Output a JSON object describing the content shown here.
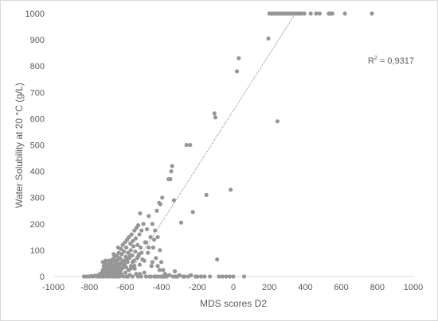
{
  "chart_data": {
    "type": "scatter",
    "title": "",
    "xlabel": "MDS scores D2",
    "ylabel": "Water Solubility at 20 °C (g/L)",
    "xlim": [
      -1000,
      1000
    ],
    "ylim": [
      0,
      1000
    ],
    "x_ticks": [
      "-1000",
      "-800",
      "-600",
      "-400",
      "-200",
      "0",
      "200",
      "400",
      "600",
      "800",
      "1000"
    ],
    "y_ticks": [
      "0",
      "100",
      "200",
      "300",
      "400",
      "500",
      "600",
      "700",
      "800",
      "900",
      "1000"
    ],
    "grid": false,
    "legend": "none",
    "marker_color": "#969696",
    "trendline": {
      "style": "dotted",
      "color": "#8c8c8c",
      "from": [
        -590,
        0
      ],
      "to": [
        345,
        1000
      ],
      "r2_label_prefix": "R",
      "r2_label_sup": "2",
      "r2_label_value": " = 0,9317"
    },
    "points": [
      [
        -830,
        0
      ],
      [
        -815,
        0
      ],
      [
        -800,
        0
      ],
      [
        -790,
        2
      ],
      [
        -780,
        0
      ],
      [
        -770,
        3
      ],
      [
        -760,
        0
      ],
      [
        -750,
        5
      ],
      [
        -745,
        0
      ],
      [
        -740,
        10
      ],
      [
        -735,
        2
      ],
      [
        -730,
        15
      ],
      [
        -728,
        0
      ],
      [
        -725,
        25
      ],
      [
        -722,
        5
      ],
      [
        -720,
        40
      ],
      [
        -718,
        0
      ],
      [
        -715,
        20
      ],
      [
        -712,
        8
      ],
      [
        -710,
        60
      ],
      [
        -708,
        3
      ],
      [
        -705,
        30
      ],
      [
        -702,
        12
      ],
      [
        -700,
        0
      ],
      [
        -698,
        45
      ],
      [
        -695,
        18
      ],
      [
        -692,
        5
      ],
      [
        -690,
        60
      ],
      [
        -688,
        25
      ],
      [
        -686,
        0
      ],
      [
        -684,
        35
      ],
      [
        -682,
        10
      ],
      [
        -680,
        50
      ],
      [
        -678,
        2
      ],
      [
        -676,
        28
      ],
      [
        -674,
        15
      ],
      [
        -672,
        65
      ],
      [
        -670,
        0
      ],
      [
        -668,
        40
      ],
      [
        -666,
        8
      ],
      [
        -664,
        30
      ],
      [
        -662,
        20
      ],
      [
        -660,
        75
      ],
      [
        -658,
        0
      ],
      [
        -656,
        45
      ],
      [
        -654,
        12
      ],
      [
        -652,
        55
      ],
      [
        -650,
        5
      ],
      [
        -648,
        35
      ],
      [
        -646,
        80
      ],
      [
        -644,
        0
      ],
      [
        -642,
        25
      ],
      [
        -640,
        65
      ],
      [
        -638,
        10
      ],
      [
        -636,
        90
      ],
      [
        -634,
        40
      ],
      [
        -632,
        0
      ],
      [
        -630,
        70
      ],
      [
        -628,
        20
      ],
      [
        -626,
        50
      ],
      [
        -624,
        105
      ],
      [
        -622,
        8
      ],
      [
        -620,
        85
      ],
      [
        -618,
        30
      ],
      [
        -615,
        120
      ],
      [
        -612,
        60
      ],
      [
        -610,
        0
      ],
      [
        -608,
        95
      ],
      [
        -605,
        45
      ],
      [
        -602,
        130
      ],
      [
        -600,
        15
      ],
      [
        -598,
        75
      ],
      [
        -595,
        110
      ],
      [
        -592,
        0
      ],
      [
        -590,
        140
      ],
      [
        -588,
        55
      ],
      [
        -585,
        90
      ],
      [
        -582,
        25
      ],
      [
        -580,
        150
      ],
      [
        -578,
        70
      ],
      [
        -575,
        5
      ],
      [
        -572,
        125
      ],
      [
        -570,
        100
      ],
      [
        -568,
        40
      ],
      [
        -565,
        160
      ],
      [
        -562,
        80
      ],
      [
        -560,
        0
      ],
      [
        -558,
        135
      ],
      [
        -555,
        115
      ],
      [
        -552,
        60
      ],
      [
        -550,
        175
      ],
      [
        -548,
        30
      ],
      [
        -545,
        95
      ],
      [
        -542,
        145
      ],
      [
        -540,
        10
      ],
      [
        -538,
        185
      ],
      [
        -535,
        70
      ],
      [
        -532,
        120
      ],
      [
        -530,
        0
      ],
      [
        -528,
        195
      ],
      [
        -525,
        85
      ],
      [
        -522,
        160
      ],
      [
        -520,
        45
      ],
      [
        -518,
        240
      ],
      [
        -515,
        110
      ],
      [
        -512,
        0
      ],
      [
        -510,
        175
      ],
      [
        -505,
        65
      ],
      [
        -500,
        200
      ],
      [
        -495,
        15
      ],
      [
        -490,
        130
      ],
      [
        -485,
        0
      ],
      [
        -480,
        180
      ],
      [
        -475,
        90
      ],
      [
        -470,
        230
      ],
      [
        -465,
        0
      ],
      [
        -460,
        150
      ],
      [
        -455,
        40
      ],
      [
        -450,
        200
      ],
      [
        -445,
        110
      ],
      [
        -440,
        0
      ],
      [
        -435,
        175
      ],
      [
        -430,
        70
      ],
      [
        -425,
        250
      ],
      [
        -420,
        150
      ],
      [
        -415,
        0
      ],
      [
        -412,
        280
      ],
      [
        -408,
        100
      ],
      [
        -405,
        275
      ],
      [
        -400,
        55
      ],
      [
        -398,
        0
      ],
      [
        -395,
        300
      ],
      [
        -390,
        25
      ],
      [
        -385,
        0
      ],
      [
        -380,
        10
      ],
      [
        -370,
        0
      ],
      [
        -360,
        370
      ],
      [
        -355,
        5
      ],
      [
        -350,
        370
      ],
      [
        -345,
        400
      ],
      [
        -340,
        420
      ],
      [
        -335,
        0
      ],
      [
        -330,
        290
      ],
      [
        -325,
        20
      ],
      [
        -320,
        0
      ],
      [
        -310,
        0
      ],
      [
        -300,
        5
      ],
      [
        -290,
        205
      ],
      [
        -280,
        0
      ],
      [
        -270,
        0
      ],
      [
        -260,
        500
      ],
      [
        -250,
        0
      ],
      [
        -240,
        500
      ],
      [
        -235,
        5
      ],
      [
        -225,
        245
      ],
      [
        -210,
        0
      ],
      [
        -200,
        0
      ],
      [
        -180,
        0
      ],
      [
        -160,
        0
      ],
      [
        -150,
        310
      ],
      [
        -130,
        0
      ],
      [
        -105,
        620
      ],
      [
        -100,
        605
      ],
      [
        -90,
        65
      ],
      [
        -80,
        0
      ],
      [
        -60,
        0
      ],
      [
        -40,
        0
      ],
      [
        -20,
        0
      ],
      [
        -15,
        330
      ],
      [
        0,
        0
      ],
      [
        20,
        780
      ],
      [
        30,
        830
      ],
      [
        60,
        0
      ],
      [
        195,
        905
      ],
      [
        245,
        590
      ],
      [
        200,
        1000
      ],
      [
        212,
        1000
      ],
      [
        224,
        1000
      ],
      [
        236,
        1000
      ],
      [
        248,
        1000
      ],
      [
        260,
        1000
      ],
      [
        272,
        1000
      ],
      [
        284,
        1000
      ],
      [
        296,
        1000
      ],
      [
        308,
        1000
      ],
      [
        320,
        1000
      ],
      [
        332,
        1000
      ],
      [
        344,
        1000
      ],
      [
        356,
        1000
      ],
      [
        368,
        1000
      ],
      [
        380,
        1000
      ],
      [
        395,
        1000
      ],
      [
        430,
        1000
      ],
      [
        460,
        1000
      ],
      [
        480,
        1000
      ],
      [
        530,
        1000
      ],
      [
        540,
        1000
      ],
      [
        550,
        1000
      ],
      [
        620,
        1000
      ],
      [
        770,
        1000
      ],
      [
        -715,
        30
      ],
      [
        -700,
        35
      ],
      [
        -685,
        40
      ],
      [
        -690,
        15
      ],
      [
        -675,
        55
      ],
      [
        -660,
        35
      ],
      [
        -645,
        50
      ],
      [
        -655,
        60
      ],
      [
        -630,
        30
      ],
      [
        -610,
        40
      ],
      [
        -600,
        60
      ],
      [
        -590,
        65
      ],
      [
        -575,
        80
      ],
      [
        -560,
        55
      ],
      [
        -550,
        40
      ],
      [
        -530,
        75
      ],
      [
        -520,
        10
      ],
      [
        -510,
        90
      ],
      [
        -495,
        60
      ],
      [
        -485,
        130
      ],
      [
        -470,
        110
      ],
      [
        -460,
        0
      ],
      [
        -450,
        55
      ],
      [
        -440,
        140
      ],
      [
        -430,
        0
      ],
      [
        -420,
        40
      ],
      [
        -410,
        25
      ],
      [
        -400,
        0
      ],
      [
        -390,
        0
      ],
      [
        -375,
        5
      ],
      [
        -725,
        55
      ],
      [
        -708,
        50
      ],
      [
        -680,
        20
      ],
      [
        -665,
        85
      ],
      [
        -640,
        110
      ],
      [
        -635,
        15
      ],
      [
        -620,
        55
      ],
      [
        -596,
        35
      ],
      [
        -585,
        0
      ],
      [
        -570,
        30
      ]
    ]
  }
}
